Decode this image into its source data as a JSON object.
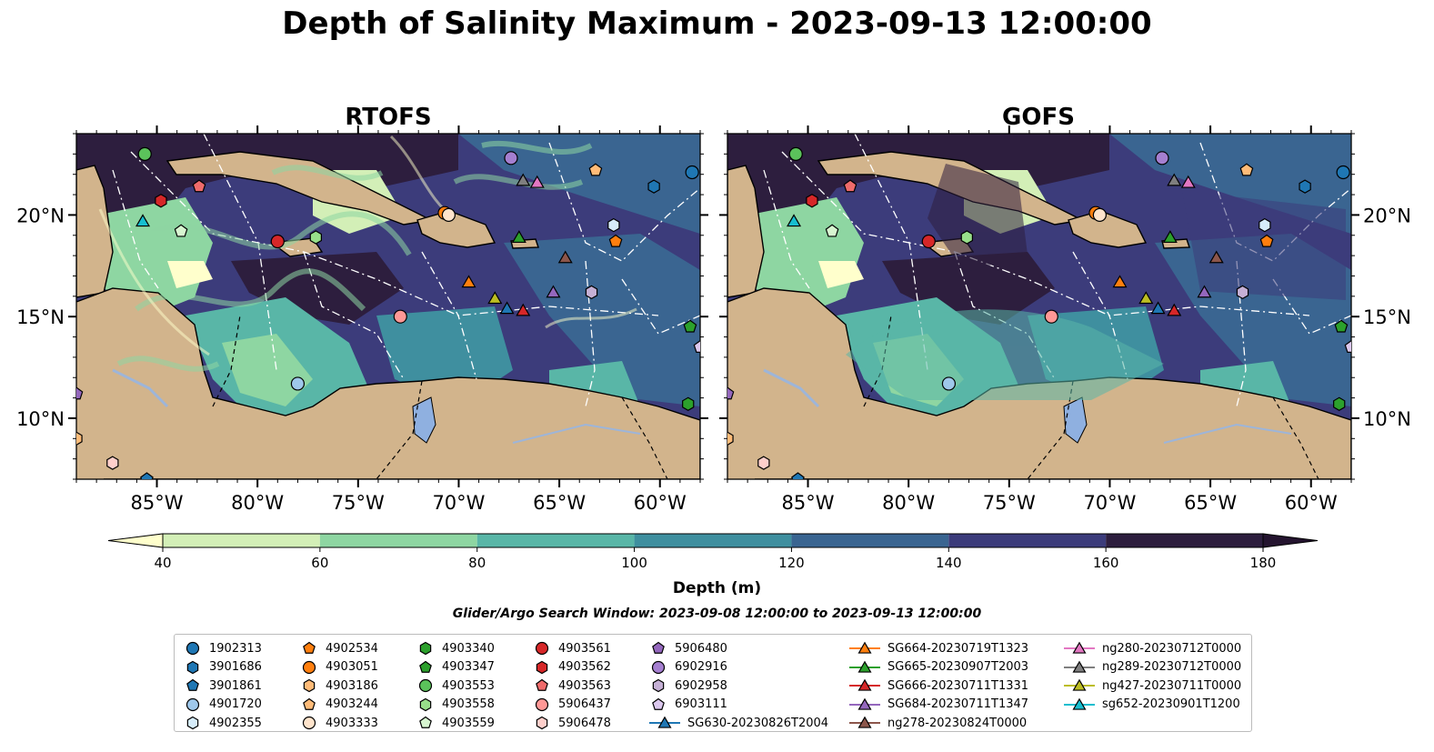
{
  "title": "Depth of Salinity Maximum - 2023-09-13 12:00:00",
  "panels": [
    {
      "title": "RTOFS"
    },
    {
      "title": "GOFS"
    }
  ],
  "x_ticks": [
    "85°W",
    "80°W",
    "75°W",
    "70°W",
    "65°W",
    "60°W"
  ],
  "y_ticks": [
    "20°N",
    "15°N",
    "10°N"
  ],
  "colorbar": {
    "label": "Depth (m)",
    "ticks": [
      "40",
      "60",
      "80",
      "100",
      "120",
      "140",
      "160",
      "180"
    ],
    "colors": [
      "#ffffcc",
      "#d3efb7",
      "#8ed6a2",
      "#59b6a7",
      "#3f8f9f",
      "#3a6591",
      "#3c3c7b",
      "#2d1e3e",
      "#24142f"
    ]
  },
  "land_color": "#d2b48c",
  "search_window": "Glider/Argo Search Window: 2023-09-08 12:00:00 to 2023-09-13 12:00:00",
  "chart_data": {
    "type": "heatmap",
    "title": "Depth of Salinity Maximum - 2023-09-13 12:00:00",
    "panels": [
      "RTOFS",
      "GOFS"
    ],
    "xlim": [
      -89,
      -58
    ],
    "ylim": [
      7,
      24
    ],
    "colorbar_label": "Depth (m)",
    "levels": [
      40,
      60,
      80,
      100,
      120,
      140,
      160,
      180
    ],
    "extend": "both",
    "legend_placement": "bottom",
    "observations": [
      {
        "name": "1902313",
        "marker": "circle",
        "color": "#1f77b4",
        "lon": -58.4,
        "lat": 22.1
      },
      {
        "name": "3901686",
        "marker": "hexagon",
        "color": "#1f77b4",
        "lon": -60.3,
        "lat": 21.4
      },
      {
        "name": "3901861",
        "marker": "pentagon",
        "color": "#1f77b4",
        "lon": -85.5,
        "lat": 7.0
      },
      {
        "name": "4901720",
        "marker": "circle",
        "color": "#9fc8eb",
        "lon": -78.0,
        "lat": 11.7
      },
      {
        "name": "4902355",
        "marker": "hexagon",
        "color": "#d6ecfa",
        "lon": -62.3,
        "lat": 19.5
      },
      {
        "name": "4902534",
        "marker": "pentagon",
        "color": "#ff7f0e",
        "lon": -62.2,
        "lat": 18.7
      },
      {
        "name": "4903051",
        "marker": "circle",
        "color": "#ff7f0e",
        "lon": -70.7,
        "lat": 20.1
      },
      {
        "name": "4903186",
        "marker": "hexagon",
        "color": "#ffbb78",
        "lon": -89.0,
        "lat": 9.0
      },
      {
        "name": "4903244",
        "marker": "pentagon",
        "color": "#ffbb78",
        "lon": -63.2,
        "lat": 22.2
      },
      {
        "name": "4903333",
        "marker": "circle",
        "color": "#ffe4cc",
        "lon": -70.5,
        "lat": 20.0
      },
      {
        "name": "4903340",
        "marker": "hexagon",
        "color": "#2ca02c",
        "lon": -58.6,
        "lat": 10.7
      },
      {
        "name": "4903347",
        "marker": "pentagon",
        "color": "#2ca02c",
        "lon": -58.5,
        "lat": 14.5
      },
      {
        "name": "4903553",
        "marker": "circle",
        "color": "#5bc25b",
        "lon": -85.6,
        "lat": 23.0
      },
      {
        "name": "4903558",
        "marker": "hexagon",
        "color": "#98df8a",
        "lon": -77.1,
        "lat": 18.9
      },
      {
        "name": "4903559",
        "marker": "pentagon",
        "color": "#d7f5d0",
        "lon": -83.8,
        "lat": 19.2
      },
      {
        "name": "4903561",
        "marker": "circle",
        "color": "#d62728",
        "lon": -79.0,
        "lat": 18.7
      },
      {
        "name": "4903562",
        "marker": "hexagon",
        "color": "#d62728",
        "lon": -84.8,
        "lat": 20.7
      },
      {
        "name": "4903563",
        "marker": "pentagon",
        "color": "#ef6b6b",
        "lon": -82.9,
        "lat": 21.4
      },
      {
        "name": "5906437",
        "marker": "circle",
        "color": "#ff9896",
        "lon": -72.9,
        "lat": 15.0
      },
      {
        "name": "5906478",
        "marker": "hexagon",
        "color": "#ffcfcb",
        "lon": -87.2,
        "lat": 7.8
      },
      {
        "name": "5906480",
        "marker": "pentagon",
        "color": "#9467bd",
        "lon": -89.0,
        "lat": 11.2
      },
      {
        "name": "6902916",
        "marker": "circle",
        "color": "#a57fd0",
        "lon": -67.4,
        "lat": 22.8
      },
      {
        "name": "6902958",
        "marker": "hexagon",
        "color": "#c5b0d5",
        "lon": -63.4,
        "lat": 16.2
      },
      {
        "name": "6903111",
        "marker": "pentagon",
        "color": "#dcc8ee",
        "lon": -58.0,
        "lat": 13.5
      },
      {
        "name": "SG630-20230826T2004",
        "marker": "triangle",
        "color": "#1f77b4",
        "lon": -67.6,
        "lat": 15.4
      },
      {
        "name": "SG664-20230719T1323",
        "marker": "triangle",
        "color": "#ff7f0e",
        "lon": -69.5,
        "lat": 16.7
      },
      {
        "name": "SG665-20230907T2003",
        "marker": "triangle",
        "color": "#2ca02c",
        "lon": -67.0,
        "lat": 18.9
      },
      {
        "name": "SG666-20230711T1331",
        "marker": "triangle",
        "color": "#d62728",
        "lon": -66.8,
        "lat": 15.3
      },
      {
        "name": "SG684-20230711T1347",
        "marker": "triangle",
        "color": "#9467bd",
        "lon": -65.3,
        "lat": 16.2
      },
      {
        "name": "ng278-20230824T0000",
        "marker": "triangle",
        "color": "#8c564b",
        "lon": -64.7,
        "lat": 17.9
      },
      {
        "name": "ng280-20230712T0000",
        "marker": "triangle",
        "color": "#e377c2",
        "lon": -66.1,
        "lat": 21.6
      },
      {
        "name": "ng289-20230712T0000",
        "marker": "triangle",
        "color": "#7f7f7f",
        "lon": -66.8,
        "lat": 21.7
      },
      {
        "name": "ng427-20230711T0000",
        "marker": "triangle",
        "color": "#bcbd22",
        "lon": -68.2,
        "lat": 15.9
      },
      {
        "name": "sg652-20230901T1200",
        "marker": "triangle",
        "color": "#17becf",
        "lon": -85.7,
        "lat": 19.7
      }
    ]
  }
}
